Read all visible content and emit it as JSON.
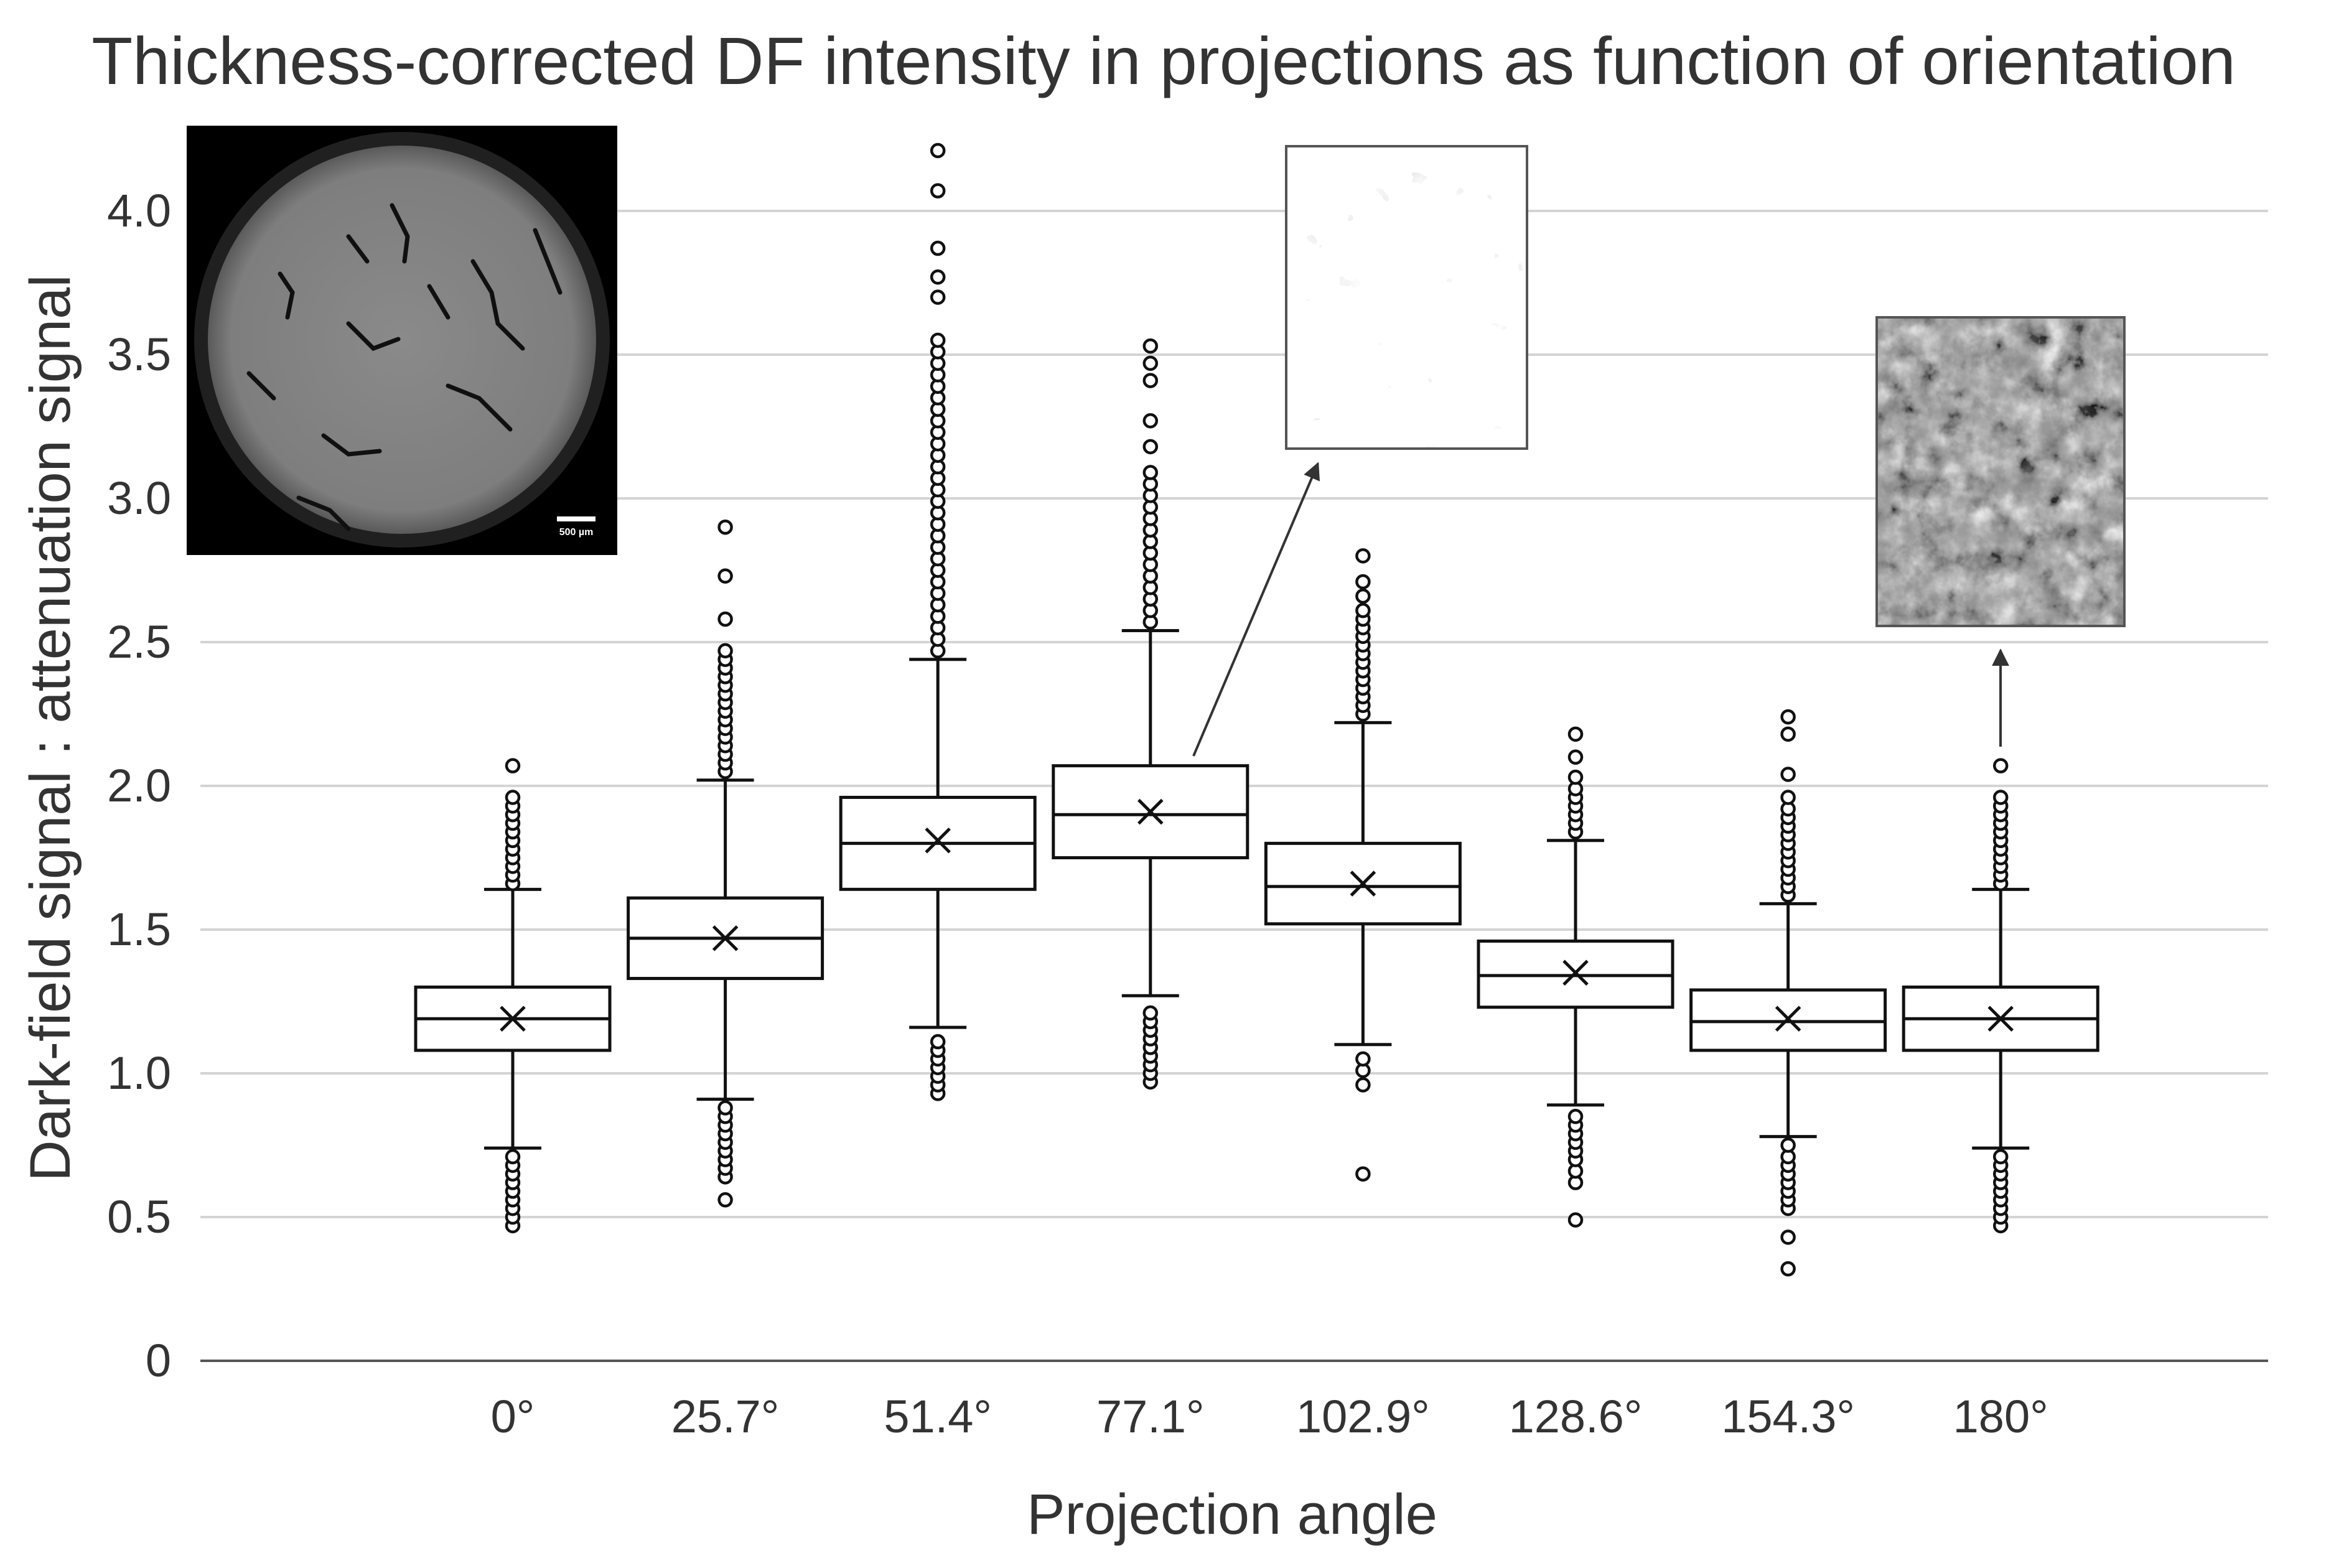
{
  "chart_data": {
    "type": "box",
    "title": "Thickness-corrected DF intensity in projections as function of orientation",
    "xlabel": "Projection angle",
    "ylabel": "Dark-field signal : attenuation signal",
    "ylim": [
      0,
      4.25
    ],
    "yticks": [
      "0",
      "0.5",
      "1.0",
      "1.5",
      "2.0",
      "2.5",
      "3.0",
      "3.5",
      "4.0"
    ],
    "grid": "horizontal",
    "categories": [
      "0°",
      "25.7°",
      "51.4°",
      "77.1°",
      "102.9°",
      "128.6°",
      "154.3°",
      "180°"
    ],
    "boxes": [
      {
        "whisker_low": 0.74,
        "q1": 1.08,
        "median": 1.19,
        "q3": 1.3,
        "whisker_high": 1.64,
        "mean": 1.19,
        "outliers": [
          0.47,
          0.5,
          0.53,
          0.56,
          0.59,
          0.62,
          0.65,
          0.68,
          0.71,
          1.66,
          1.69,
          1.72,
          1.75,
          1.78,
          1.81,
          1.84,
          1.87,
          1.9,
          1.93,
          1.96,
          2.07
        ]
      },
      {
        "whisker_low": 0.91,
        "q1": 1.33,
        "median": 1.47,
        "q3": 1.61,
        "whisker_high": 2.02,
        "mean": 1.47,
        "outliers": [
          0.56,
          0.64,
          0.67,
          0.7,
          0.73,
          0.76,
          0.79,
          0.82,
          0.85,
          0.88,
          2.05,
          2.08,
          2.11,
          2.14,
          2.17,
          2.2,
          2.23,
          2.26,
          2.29,
          2.32,
          2.35,
          2.38,
          2.41,
          2.44,
          2.47,
          2.58,
          2.73,
          2.9
        ]
      },
      {
        "whisker_low": 1.16,
        "q1": 1.64,
        "median": 1.8,
        "q3": 1.96,
        "whisker_high": 2.44,
        "mean": 1.81,
        "outliers": [
          0.93,
          0.96,
          0.99,
          1.02,
          1.05,
          1.08,
          1.11,
          2.47,
          2.51,
          2.55,
          2.59,
          2.63,
          2.67,
          2.71,
          2.75,
          2.79,
          2.83,
          2.87,
          2.91,
          2.95,
          2.99,
          3.03,
          3.07,
          3.11,
          3.15,
          3.19,
          3.23,
          3.27,
          3.31,
          3.35,
          3.39,
          3.43,
          3.47,
          3.51,
          3.55,
          3.7,
          3.77,
          3.87,
          4.07,
          4.21
        ]
      },
      {
        "whisker_low": 1.27,
        "q1": 1.75,
        "median": 1.9,
        "q3": 2.07,
        "whisker_high": 2.54,
        "mean": 1.91,
        "outliers": [
          0.97,
          1.0,
          1.03,
          1.06,
          1.09,
          1.12,
          1.15,
          1.18,
          1.21,
          2.57,
          2.61,
          2.65,
          2.69,
          2.73,
          2.77,
          2.81,
          2.85,
          2.89,
          2.93,
          2.97,
          3.01,
          3.05,
          3.09,
          3.18,
          3.27,
          3.41,
          3.47,
          3.53
        ]
      },
      {
        "whisker_low": 1.1,
        "q1": 1.52,
        "median": 1.65,
        "q3": 1.8,
        "whisker_high": 2.22,
        "mean": 1.66,
        "outliers": [
          0.65,
          0.96,
          1.01,
          1.05,
          2.25,
          2.28,
          2.31,
          2.34,
          2.37,
          2.4,
          2.43,
          2.46,
          2.49,
          2.52,
          2.55,
          2.58,
          2.61,
          2.66,
          2.71,
          2.8
        ]
      },
      {
        "whisker_low": 0.89,
        "q1": 1.23,
        "median": 1.34,
        "q3": 1.46,
        "whisker_high": 1.81,
        "mean": 1.35,
        "outliers": [
          0.49,
          0.62,
          0.66,
          0.7,
          0.73,
          0.76,
          0.79,
          0.82,
          0.85,
          1.84,
          1.87,
          1.9,
          1.93,
          1.96,
          1.99,
          2.03,
          2.1,
          2.18
        ]
      },
      {
        "whisker_low": 0.78,
        "q1": 1.08,
        "median": 1.18,
        "q3": 1.29,
        "whisker_high": 1.59,
        "mean": 1.19,
        "outliers": [
          0.32,
          0.43,
          0.53,
          0.56,
          0.59,
          0.62,
          0.65,
          0.68,
          0.71,
          0.75,
          1.62,
          1.65,
          1.68,
          1.71,
          1.74,
          1.77,
          1.8,
          1.83,
          1.86,
          1.89,
          1.92,
          1.96,
          2.04,
          2.18,
          2.24
        ]
      },
      {
        "whisker_low": 0.74,
        "q1": 1.08,
        "median": 1.19,
        "q3": 1.3,
        "whisker_high": 1.64,
        "mean": 1.19,
        "outliers": [
          0.47,
          0.5,
          0.53,
          0.56,
          0.59,
          0.62,
          0.65,
          0.68,
          0.71,
          1.66,
          1.69,
          1.72,
          1.75,
          1.78,
          1.81,
          1.84,
          1.87,
          1.9,
          1.93,
          1.96,
          2.07
        ]
      }
    ]
  },
  "insets": {
    "ct_slice": {
      "scale_bar_label": "500 µm"
    },
    "dark_field_detail_77": {
      "points_to_category": "77.1°"
    },
    "dark_field_detail_180": {
      "points_to_category": "180°"
    }
  }
}
